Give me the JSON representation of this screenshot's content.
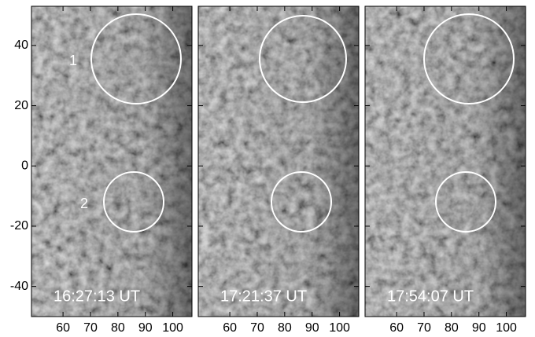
{
  "xlim": [
    48.5,
    107
  ],
  "ylim": [
    -50,
    53
  ],
  "xticks": [
    60,
    70,
    80,
    90,
    100
  ],
  "yticks": [
    40,
    20,
    0,
    -20,
    -40
  ],
  "panels": [
    {
      "time": "16:27:13 UT",
      "region_labels": [
        "1",
        "2"
      ]
    },
    {
      "time": "17:21:37 UT"
    },
    {
      "time": "17:54:07 UT"
    }
  ]
}
